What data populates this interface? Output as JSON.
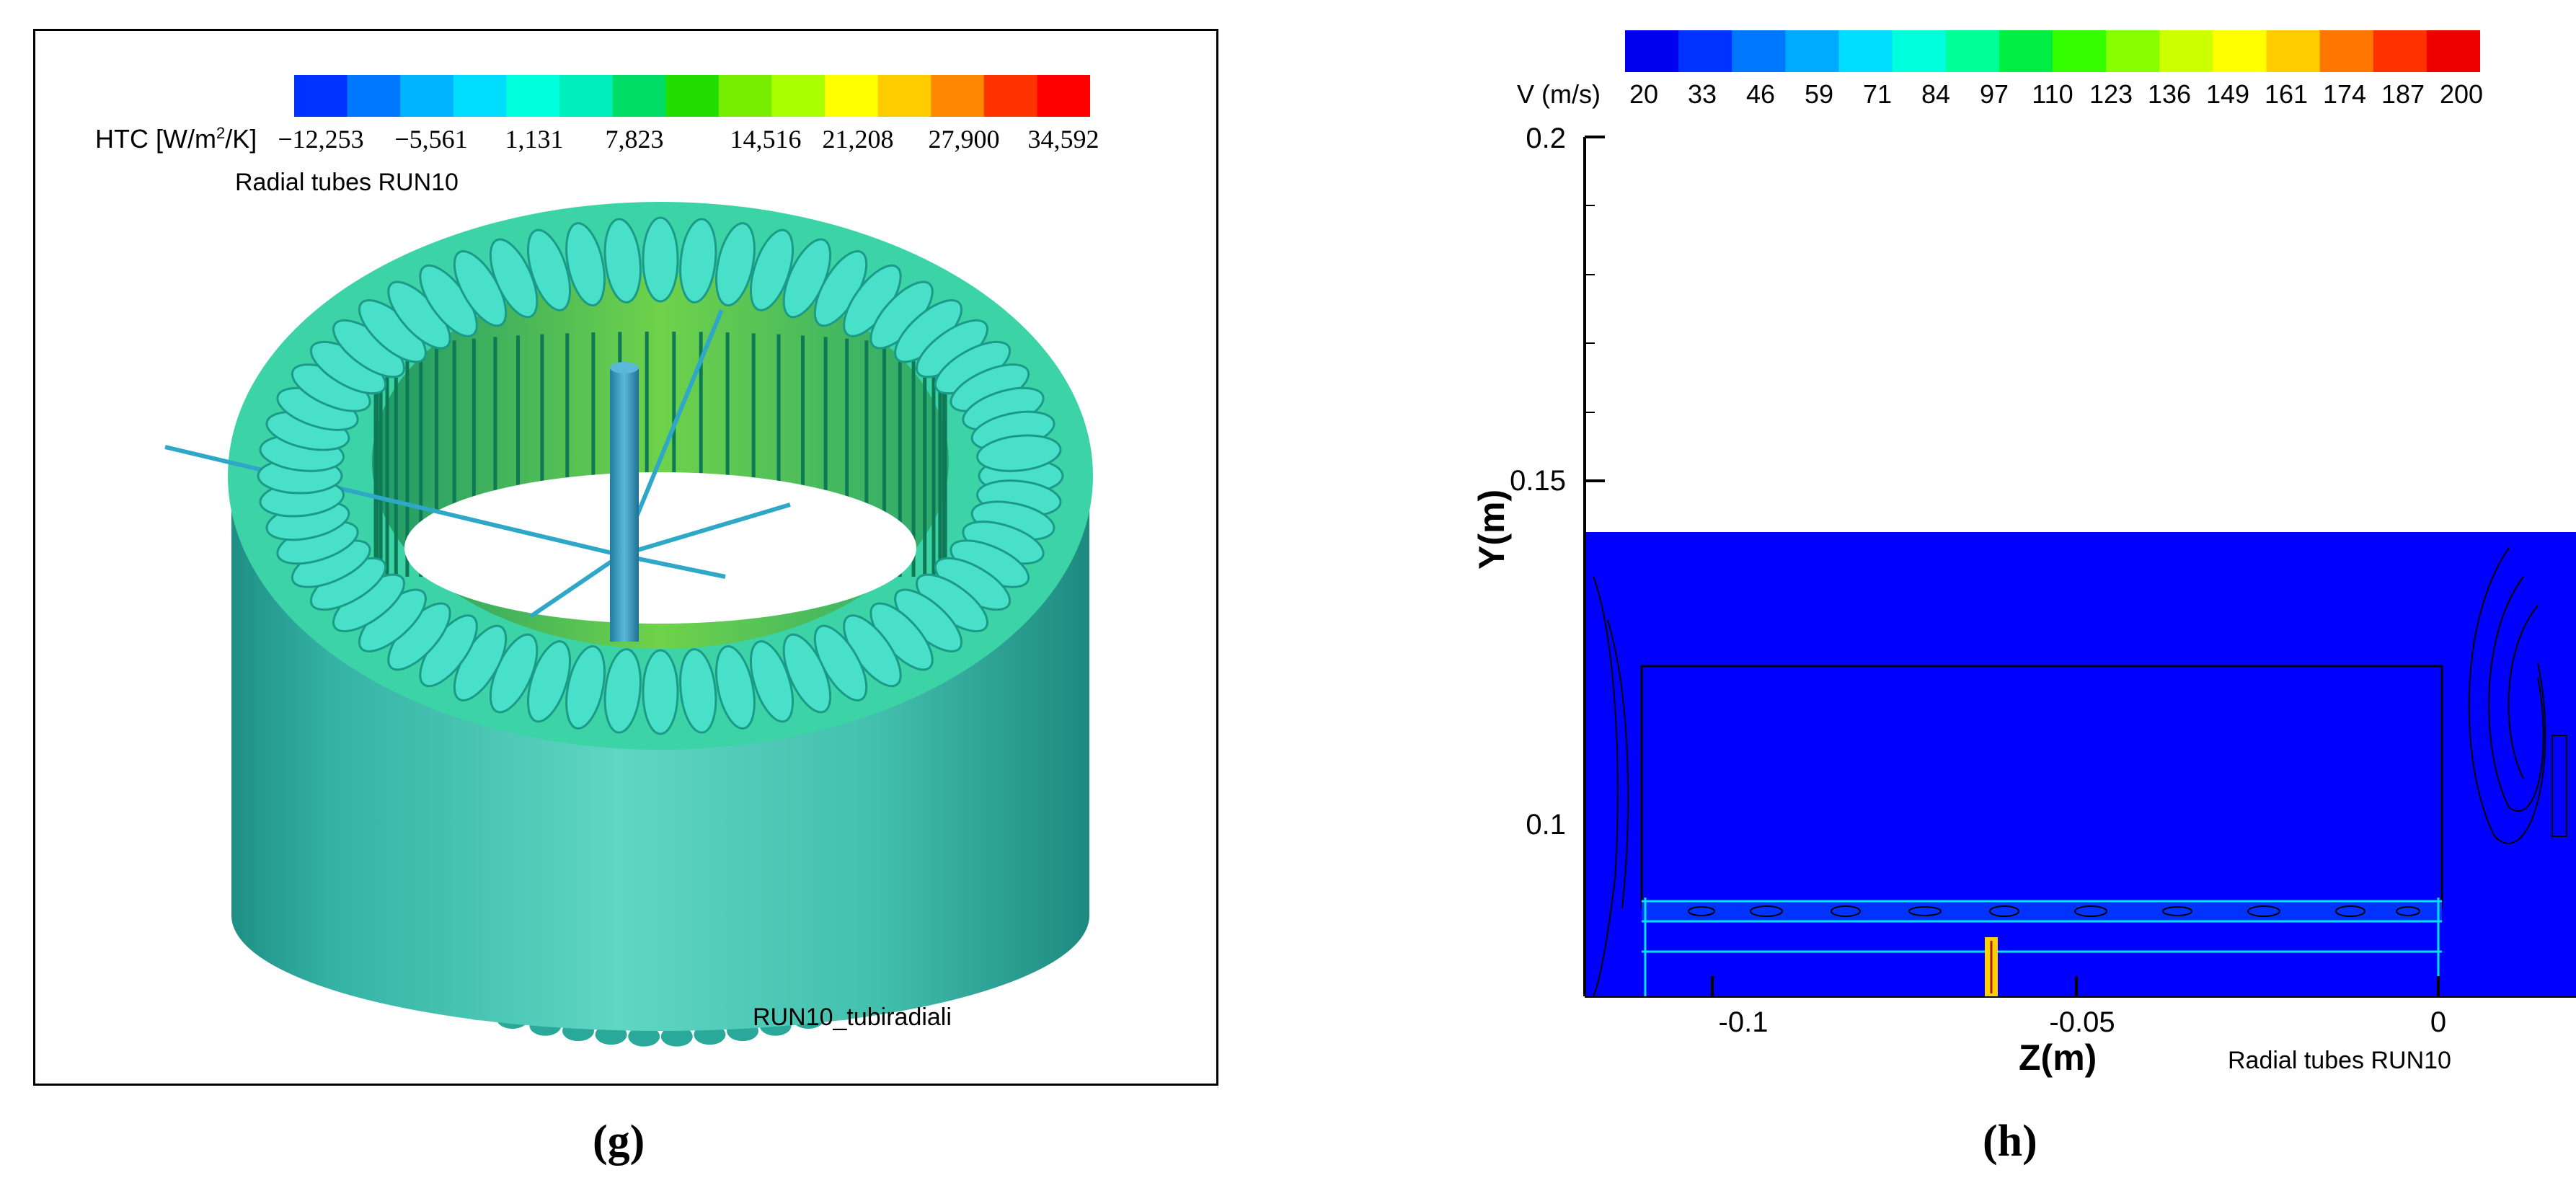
{
  "panel_g": {
    "colorbar": {
      "label": "HTC [W/m",
      "label_sup": "2",
      "label_tail": "/K]",
      "ticks": [
        "−12,253",
        "−5,561",
        "1,131",
        "7,823",
        "14,516",
        "21,208",
        "27,900",
        "34,592"
      ],
      "colors": [
        "#0033ff",
        "#0077ff",
        "#00b3ff",
        "#00ddff",
        "#00ffdd",
        "#00eebb",
        "#00dd66",
        "#22dd00",
        "#77ee00",
        "#aaff00",
        "#ffff00",
        "#ffcc00",
        "#ff8800",
        "#ff3300",
        "#ff0000"
      ]
    },
    "subtitle": "Radial tubes RUN10",
    "footer": "RUN10_tubiradiali",
    "caption": "(g)"
  },
  "panel_h": {
    "colorbar": {
      "label": "V (m/s)",
      "ticks": [
        "20",
        "33",
        "46",
        "59",
        "71",
        "84",
        "97",
        "110",
        "123",
        "136",
        "149",
        "161",
        "174",
        "187",
        "200"
      ],
      "colors": [
        "#0000ee",
        "#0033ff",
        "#0077ff",
        "#00aaff",
        "#00ddff",
        "#00ffdd",
        "#00ff99",
        "#00ee44",
        "#33ff00",
        "#88ff00",
        "#ccff00",
        "#ffff00",
        "#ffcc00",
        "#ff7700",
        "#ff3300",
        "#ee0000"
      ]
    },
    "y_axis_label": "Y(m)",
    "y_ticks": [
      "0.2",
      "0.15",
      "0.1"
    ],
    "x_axis_label": "Z(m)",
    "x_ticks": [
      "-0.1",
      "-0.05",
      "0"
    ],
    "footer": "Radial tubes RUN10",
    "caption": "(h)"
  }
}
